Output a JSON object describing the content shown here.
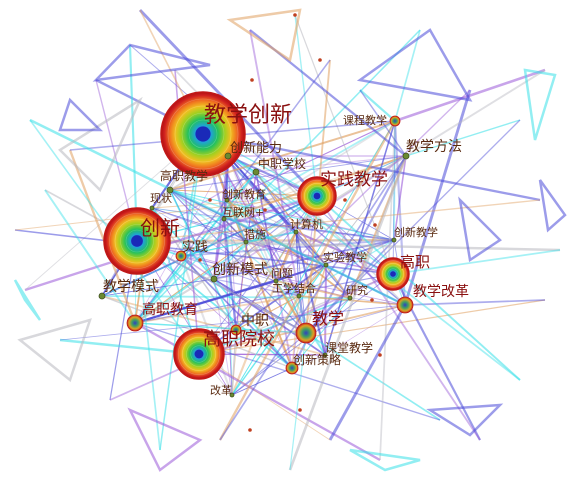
{
  "colors": {
    "label_dark": "#5a2a10",
    "label_red": "#8a1010",
    "edge_blue": "#4a4ad8",
    "edge_cyan": "#38e0e8",
    "edge_purple": "#9a5ad8",
    "edge_grey": "#b8b8c0",
    "edge_orange": "#e0a060",
    "ring_outer": "#c01818"
  },
  "keywords": [
    {
      "id": "k1",
      "text": "教学创新",
      "tier": "large"
    },
    {
      "id": "k2",
      "text": "创新",
      "tier": "large"
    },
    {
      "id": "k3",
      "text": "高职院校",
      "tier": "large"
    },
    {
      "id": "k4",
      "text": "实践教学",
      "tier": "medium"
    },
    {
      "id": "k5",
      "text": "高职",
      "tier": "medium"
    },
    {
      "id": "k6",
      "text": "创新能力",
      "tier": "small"
    },
    {
      "id": "k7",
      "text": "中职学校",
      "tier": "small"
    },
    {
      "id": "k8",
      "text": "高职教学",
      "tier": "small"
    },
    {
      "id": "k9",
      "text": "创新教育",
      "tier": "tiny"
    },
    {
      "id": "k10",
      "text": "现状",
      "tier": "tiny"
    },
    {
      "id": "k11",
      "text": "互联网+",
      "tier": "tiny"
    },
    {
      "id": "k12",
      "text": "措施",
      "tier": "tiny"
    },
    {
      "id": "k13",
      "text": "计算机",
      "tier": "tiny"
    },
    {
      "id": "k14",
      "text": "创新教学",
      "tier": "tiny"
    },
    {
      "id": "k15",
      "text": "实践",
      "tier": "small"
    },
    {
      "id": "k16",
      "text": "实验教学",
      "tier": "tiny"
    },
    {
      "id": "k17",
      "text": "课程教学",
      "tier": "tiny"
    },
    {
      "id": "k18",
      "text": "教学方法",
      "tier": "small"
    },
    {
      "id": "k19",
      "text": "教学模式",
      "tier": "small"
    },
    {
      "id": "k20",
      "text": "创新模式",
      "tier": "small"
    },
    {
      "id": "k21",
      "text": "问题",
      "tier": "tiny"
    },
    {
      "id": "k22",
      "text": "工学结合",
      "tier": "tiny"
    },
    {
      "id": "k23",
      "text": "研究",
      "tier": "tiny"
    },
    {
      "id": "k24",
      "text": "教学改革",
      "tier": "small"
    },
    {
      "id": "k25",
      "text": "高职教育",
      "tier": "small"
    },
    {
      "id": "k26",
      "text": "中职",
      "tier": "small"
    },
    {
      "id": "k27",
      "text": "教学",
      "tier": "medium"
    },
    {
      "id": "k28",
      "text": "课堂教学",
      "tier": "tiny"
    },
    {
      "id": "k29",
      "text": "创新策略",
      "tier": "tiny"
    },
    {
      "id": "k30",
      "text": "改革",
      "tier": "tiny"
    }
  ]
}
